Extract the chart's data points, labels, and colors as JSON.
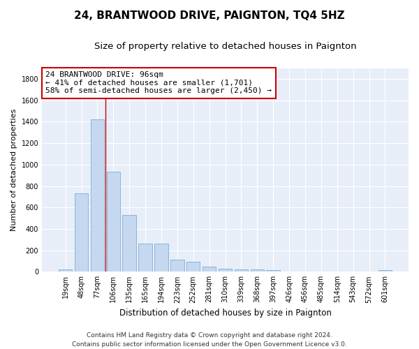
{
  "title": "24, BRANTWOOD DRIVE, PAIGNTON, TQ4 5HZ",
  "subtitle": "Size of property relative to detached houses in Paignton",
  "xlabel": "Distribution of detached houses by size in Paignton",
  "ylabel": "Number of detached properties",
  "categories": [
    "19sqm",
    "48sqm",
    "77sqm",
    "106sqm",
    "135sqm",
    "165sqm",
    "194sqm",
    "223sqm",
    "252sqm",
    "281sqm",
    "310sqm",
    "339sqm",
    "368sqm",
    "397sqm",
    "426sqm",
    "456sqm",
    "485sqm",
    "514sqm",
    "543sqm",
    "572sqm",
    "601sqm"
  ],
  "values": [
    20,
    730,
    1420,
    935,
    530,
    265,
    265,
    110,
    90,
    45,
    25,
    20,
    20,
    15,
    5,
    5,
    2,
    2,
    1,
    1,
    15
  ],
  "bar_color": "#c5d8f0",
  "bar_edge_color": "#7aaed6",
  "vline_color": "#cc0000",
  "vline_x": 2.5,
  "annotation_text": "24 BRANTWOOD DRIVE: 96sqm\n← 41% of detached houses are smaller (1,701)\n58% of semi-detached houses are larger (2,450) →",
  "annotation_box_facecolor": "#ffffff",
  "annotation_box_edgecolor": "#cc0000",
  "ylim": [
    0,
    1900
  ],
  "yticks": [
    0,
    200,
    400,
    600,
    800,
    1000,
    1200,
    1400,
    1600,
    1800
  ],
  "plot_bg_color": "#e8eef8",
  "grid_color": "#ffffff",
  "footer_text": "Contains HM Land Registry data © Crown copyright and database right 2024.\nContains public sector information licensed under the Open Government Licence v3.0.",
  "title_fontsize": 11,
  "subtitle_fontsize": 9.5,
  "xlabel_fontsize": 8.5,
  "ylabel_fontsize": 8,
  "tick_fontsize": 7,
  "annotation_fontsize": 8,
  "footer_fontsize": 6.5
}
